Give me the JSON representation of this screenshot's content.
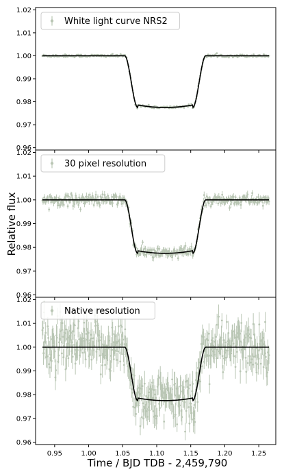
{
  "figure": {
    "ylabel": "Relative flux",
    "xlabel": "Time / BJD TDB - 2,459,790"
  },
  "chart_data": [
    {
      "type": "scatter",
      "panel": 1,
      "legend": "White light curve NRS2",
      "legend_position": "top-left",
      "xlim": [
        0.922,
        1.275
      ],
      "ylim": [
        0.959,
        1.021
      ],
      "yticks": [
        "0.96",
        "0.97",
        "0.98",
        "0.99",
        "1.00",
        "1.01",
        "1.02"
      ],
      "noise": 0.0003,
      "errbar": 0.0003,
      "series": [
        {
          "name": "White light curve NRS2",
          "role": "data",
          "x_range": [
            0.932,
            1.265
          ],
          "n_points": 340,
          "color": "#b9c6b4"
        },
        {
          "role": "model",
          "color": "#000000"
        }
      ]
    },
    {
      "type": "scatter",
      "panel": 2,
      "legend": "30 pixel resolution",
      "legend_position": "top-left",
      "xlim": [
        0.922,
        1.275
      ],
      "ylim": [
        0.959,
        1.021
      ],
      "yticks": [
        "0.96",
        "0.97",
        "0.98",
        "0.99",
        "1.00",
        "1.01",
        "1.02"
      ],
      "noise": 0.0012,
      "errbar": 0.0013,
      "series": [
        {
          "name": "30 pixel resolution",
          "role": "data",
          "x_range": [
            0.932,
            1.265
          ],
          "n_points": 340,
          "color": "#b9c6b4"
        },
        {
          "role": "model",
          "color": "#000000"
        }
      ]
    },
    {
      "type": "scatter",
      "panel": 3,
      "legend": "Native resolution",
      "legend_position": "top-left",
      "xlim": [
        0.922,
        1.275
      ],
      "ylim": [
        0.959,
        1.021
      ],
      "yticks": [
        "0.96",
        "0.97",
        "0.98",
        "0.99",
        "1.00",
        "1.01",
        "1.02"
      ],
      "xticks": [
        "0.95",
        "1.00",
        "1.05",
        "1.10",
        "1.15",
        "1.20",
        "1.25"
      ],
      "noise": 0.0055,
      "errbar": 0.0042,
      "series": [
        {
          "name": "Native resolution",
          "role": "data",
          "x_range": [
            0.932,
            1.265
          ],
          "n_points": 420,
          "color": "#b9c6b4"
        },
        {
          "role": "model",
          "color": "#000000"
        }
      ]
    }
  ],
  "transit_model": {
    "baseline": 1.0,
    "depth_flux": 0.9775,
    "t1": 1.053,
    "t2": 1.072,
    "t3": 1.153,
    "t4": 1.172,
    "limb_curvature": 0.0011
  }
}
